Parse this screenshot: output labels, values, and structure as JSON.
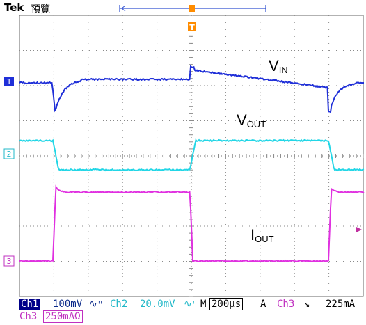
{
  "header": {
    "brand": "Tek",
    "mode": "預覽",
    "trigger_marker": "T"
  },
  "colors": {
    "ch1": "#1f2fd8",
    "ch2": "#22d6e6",
    "ch3": "#e030e0",
    "grid": "#8a8a8a",
    "status_bg": "#000088",
    "accent": "#ff8c00"
  },
  "channels": [
    {
      "id": "1",
      "label": "V",
      "sub": "IN",
      "color": "#1f2fd8"
    },
    {
      "id": "2",
      "label": "V",
      "sub": "OUT",
      "color": "#22d6e6"
    },
    {
      "id": "3",
      "label": "I",
      "sub": "OUT",
      "color": "#e030e0"
    }
  ],
  "status": {
    "ch1_name": "Ch1",
    "ch1_scale": "100mV",
    "ch2_name": "Ch2",
    "ch2_scale": "20.0mV",
    "timebase_prefix": "M",
    "timebase": "200µs",
    "trigger_label": "A",
    "trigger_source": "Ch3",
    "trigger_slope": "↘",
    "trigger_level": "225mA",
    "ch3_name": "Ch3",
    "ch3_scale": "250mA",
    "ch3_unit_icon": "Ω"
  }
}
